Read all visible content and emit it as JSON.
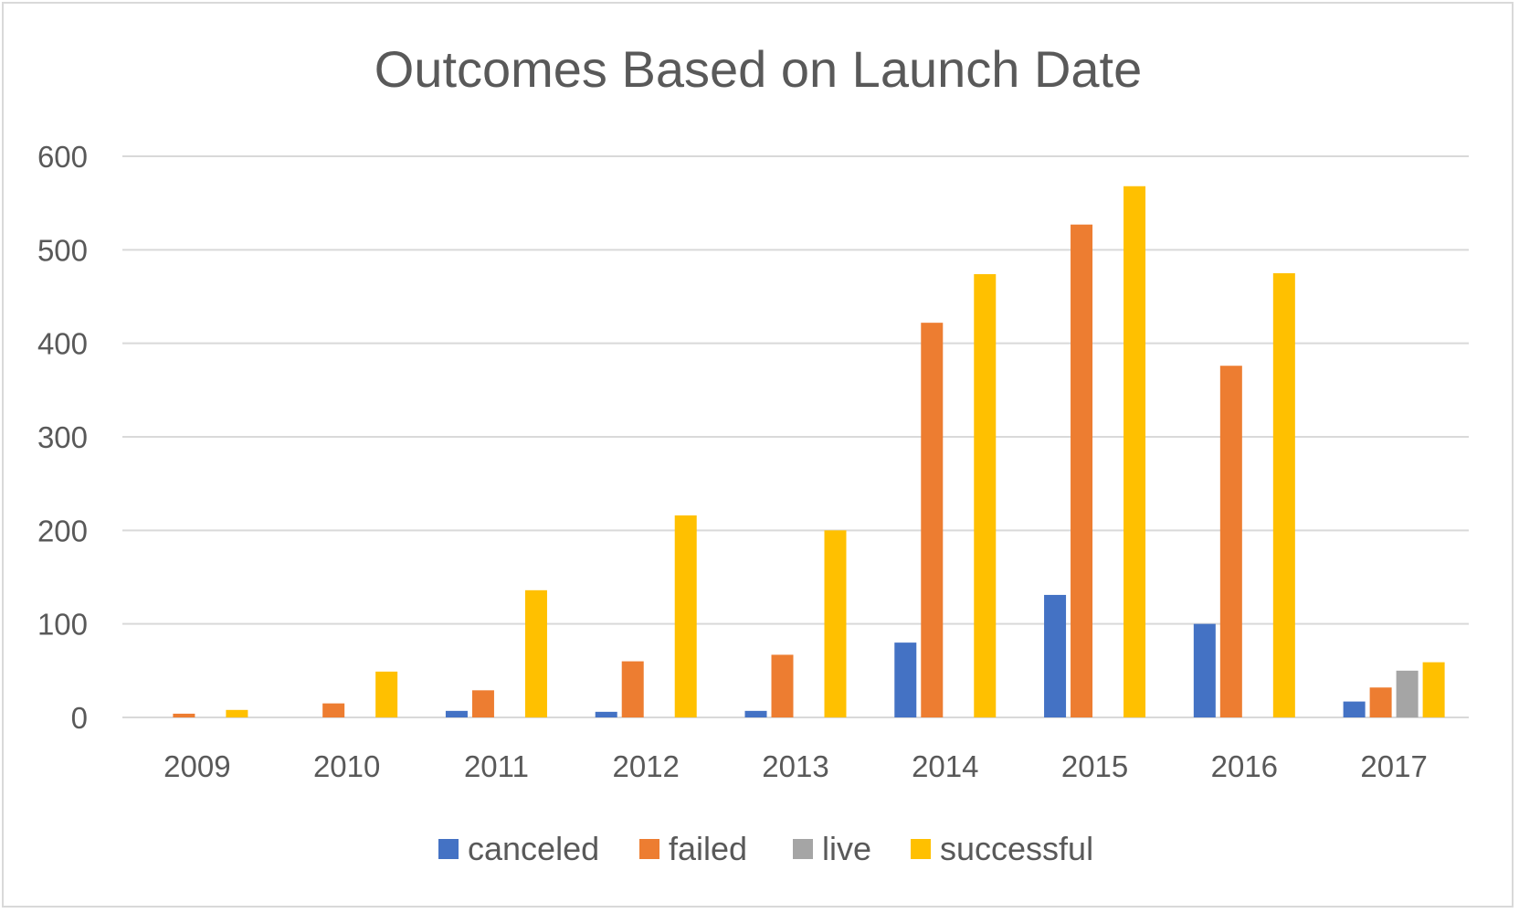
{
  "chart_data": {
    "type": "bar",
    "title": "Outcomes Based on Launch Date",
    "xlabel": "",
    "ylabel": "",
    "categories": [
      "2009",
      "2010",
      "2011",
      "2012",
      "2013",
      "2014",
      "2015",
      "2016",
      "2017"
    ],
    "ylim": [
      0,
      600
    ],
    "yticks": [
      0,
      100,
      200,
      300,
      400,
      500,
      600
    ],
    "grid": true,
    "legend_position": "bottom",
    "series": [
      {
        "name": "canceled",
        "color": "#4472c4",
        "values": [
          0,
          0,
          7,
          6,
          7,
          80,
          131,
          100,
          17
        ]
      },
      {
        "name": "failed",
        "color": "#ed7d31",
        "values": [
          4,
          15,
          29,
          60,
          67,
          422,
          527,
          376,
          32
        ]
      },
      {
        "name": "live",
        "color": "#a5a5a5",
        "values": [
          0,
          0,
          0,
          0,
          0,
          0,
          0,
          0,
          50
        ]
      },
      {
        "name": "successful",
        "color": "#ffc000",
        "values": [
          8,
          49,
          136,
          216,
          200,
          474,
          568,
          475,
          59
        ]
      }
    ]
  }
}
